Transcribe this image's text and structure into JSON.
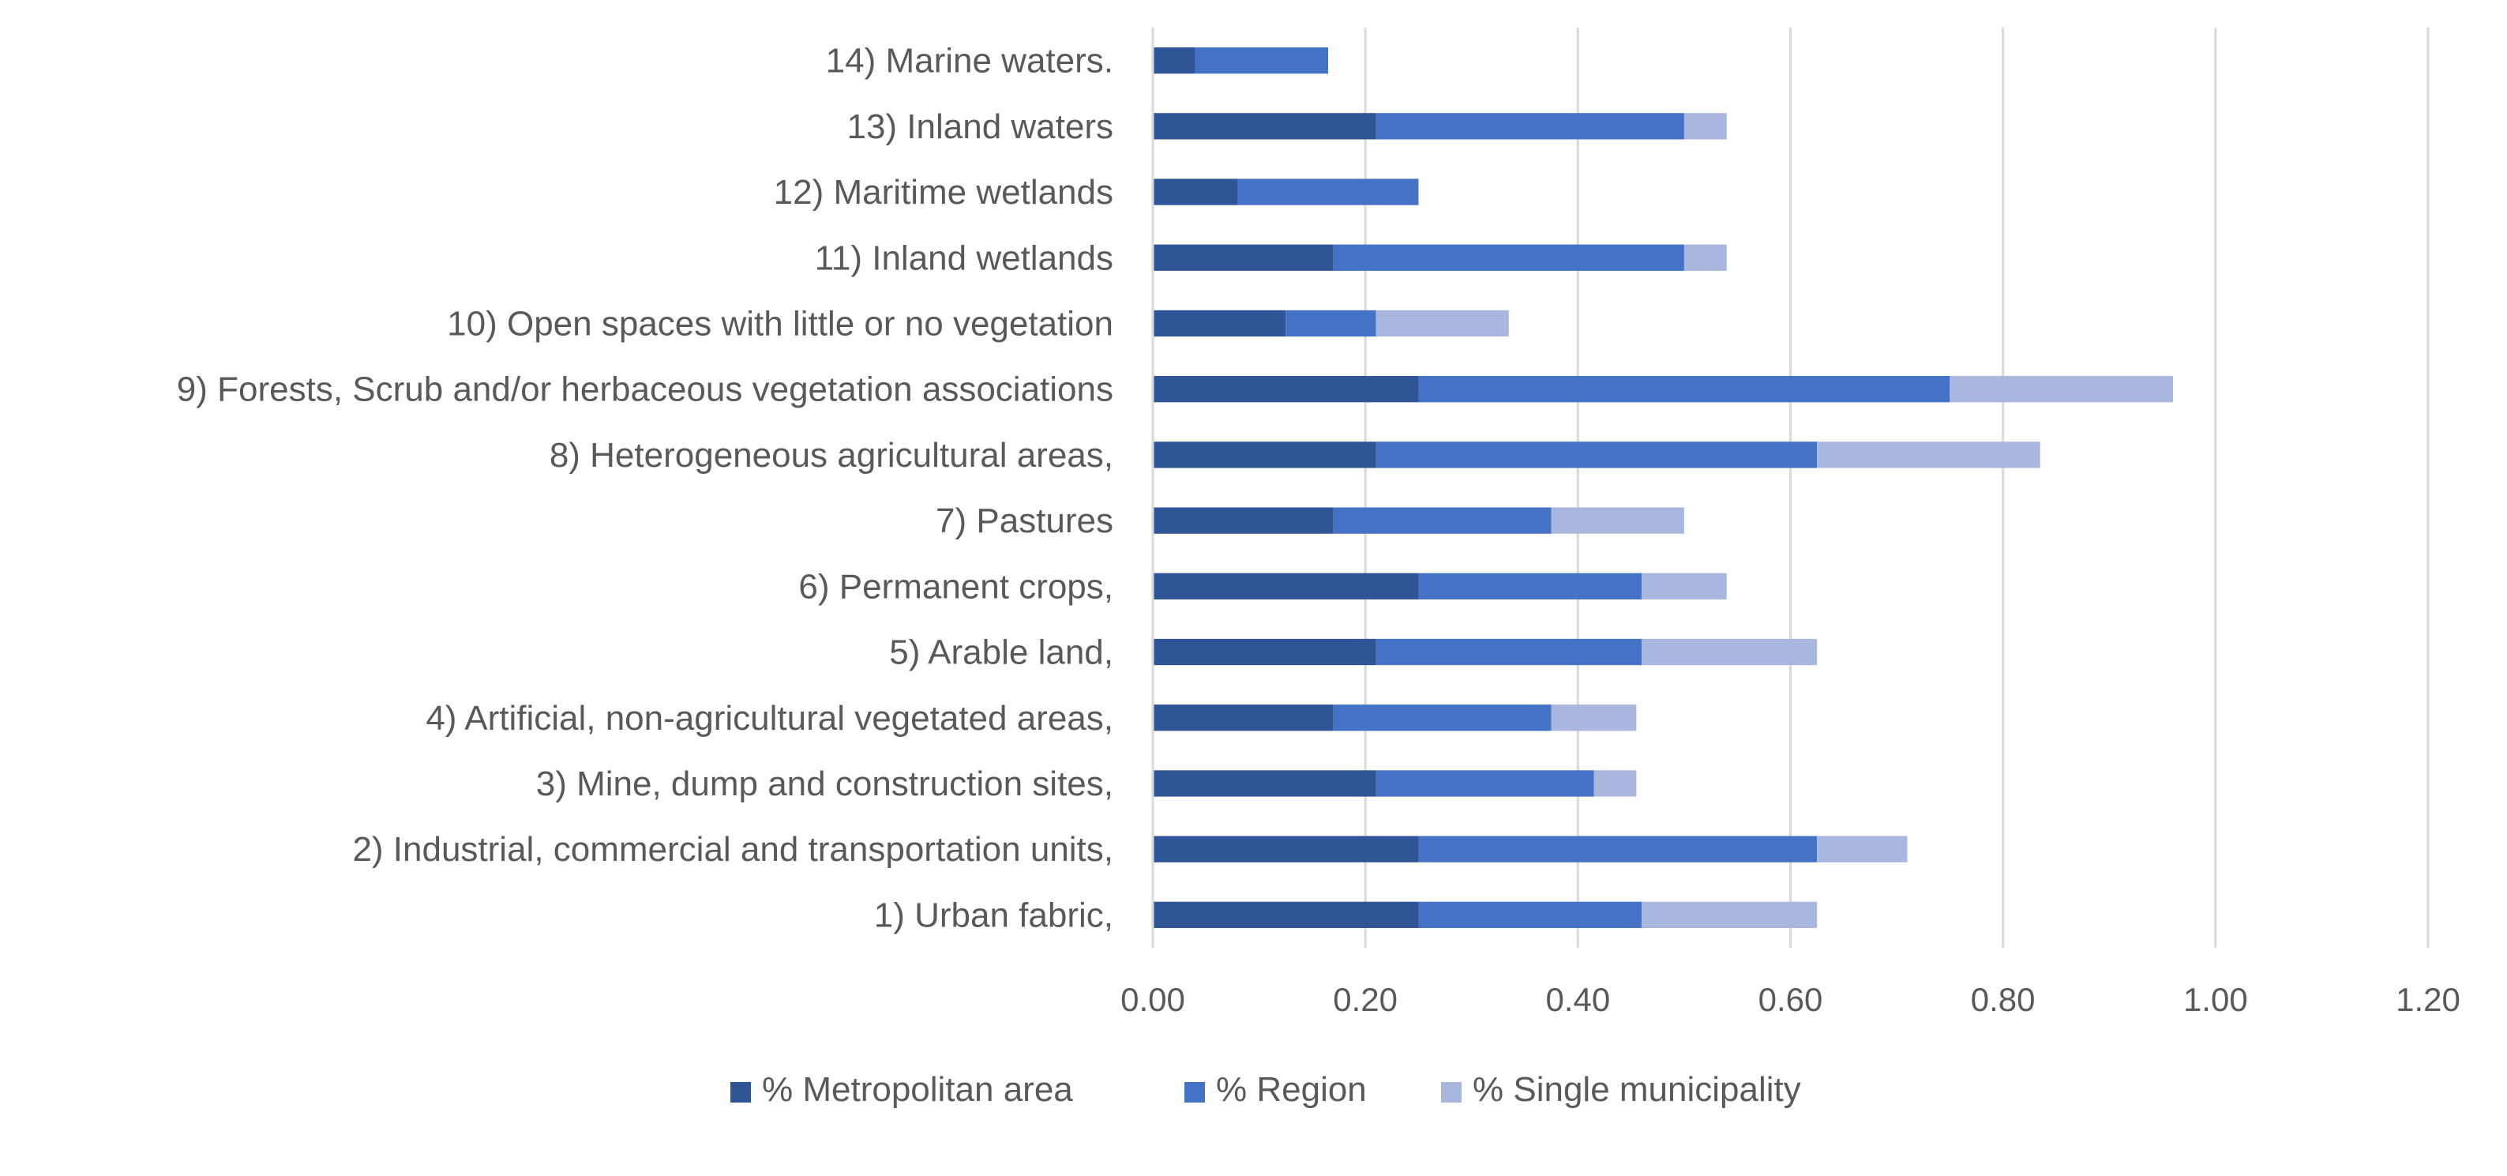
{
  "chart_data": {
    "type": "bar",
    "orientation": "horizontal",
    "stacked": true,
    "categories": [
      "1) Urban fabric,",
      "2) Industrial, commercial and transportation units,",
      "3) Mine, dump and construction sites,",
      "4) Artificial, non-agricultural vegetated areas,",
      "5) Arable land,",
      "6) Permanent crops,",
      "7) Pastures",
      "8) Heterogeneous agricultural areas,",
      "9) Forests, Scrub and/or herbaceous vegetation associations",
      "10) Open spaces with little or no vegetation",
      "11) Inland wetlands",
      "12) Maritime wetlands",
      "13) Inland waters",
      "14) Marine waters."
    ],
    "series": [
      {
        "name": "% Metropolitan area",
        "color": "#2f5597",
        "values": [
          0.25,
          0.25,
          0.21,
          0.17,
          0.21,
          0.25,
          0.17,
          0.21,
          0.25,
          0.125,
          0.17,
          0.08,
          0.21,
          0.04
        ]
      },
      {
        "name": "% Region",
        "color": "#4472c4",
        "values": [
          0.21,
          0.375,
          0.205,
          0.205,
          0.25,
          0.21,
          0.205,
          0.415,
          0.5,
          0.085,
          0.33,
          0.17,
          0.29,
          0.125
        ]
      },
      {
        "name": "% Single municipality",
        "color": "#a9b7de",
        "values": [
          0.165,
          0.085,
          0.04,
          0.08,
          0.165,
          0.08,
          0.125,
          0.21,
          0.21,
          0.125,
          0.04,
          0.0,
          0.04,
          0.0
        ]
      }
    ],
    "xlim": [
      0,
      1.2
    ],
    "xticks": [
      "0.00",
      "0.20",
      "0.40",
      "0.60",
      "0.80",
      "1.00",
      "1.20"
    ],
    "grid": true,
    "legend_position": "bottom"
  }
}
